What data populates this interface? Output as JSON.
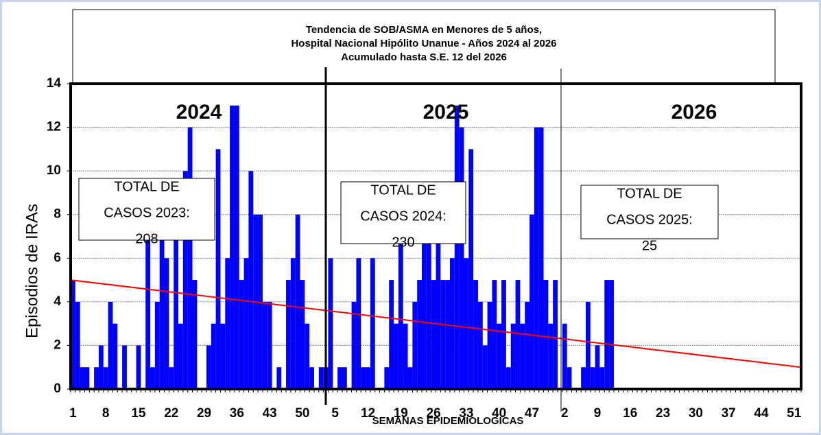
{
  "chart_data": {
    "type": "bar",
    "title_lines": [
      "Tendencia  de SOB/ASMA en Menores de 5 años,",
      "Hospital Nacional Hipólito Unanue - Años 2024 al 2026",
      "Acumulado hasta S.E. 12 del 2026"
    ],
    "x_label": "SEMANAS EPIDEMIOLOGICAS",
    "y_label": "Episodios de IRAs",
    "year_labels": [
      "2024",
      "2025",
      "2026"
    ],
    "annotations": [
      [
        "TOTAL DE",
        "CASOS 2023:",
        "208"
      ],
      [
        "TOTAL DE",
        "CASOS 2024:",
        "230"
      ],
      [
        "TOTAL DE",
        "CASOS 2025:",
        "25"
      ]
    ],
    "color": "#0000ff",
    "categories": [
      "1",
      null,
      null,
      null,
      null,
      null,
      null,
      "8",
      null,
      null,
      null,
      null,
      null,
      null,
      "15",
      null,
      null,
      null,
      null,
      null,
      null,
      "22",
      null,
      null,
      null,
      null,
      null,
      null,
      "29",
      null,
      null,
      null,
      null,
      null,
      null,
      "36",
      null,
      null,
      null,
      null,
      null,
      null,
      "43",
      null,
      null,
      null,
      null,
      null,
      null,
      "50",
      null,
      null,
      null,
      null,
      null,
      null,
      "5",
      null,
      null,
      null,
      null,
      null,
      null,
      "12",
      null,
      null,
      null,
      null,
      null,
      null,
      "19",
      null,
      null,
      null,
      null,
      null,
      null,
      "26",
      null,
      null,
      null,
      null,
      null,
      null,
      "33",
      null,
      null,
      null,
      null,
      null,
      null,
      "40",
      null,
      null,
      null,
      null,
      null,
      null,
      "47",
      null,
      null,
      null,
      null,
      null,
      null,
      "2",
      null,
      null,
      null,
      null,
      null,
      null,
      "9",
      null,
      null,
      null,
      null,
      null,
      null,
      "16",
      null,
      null,
      null,
      null,
      null,
      null,
      "23",
      null,
      null,
      null,
      null,
      null,
      null,
      "30",
      null,
      null,
      null,
      null,
      null,
      null,
      "37",
      null,
      null,
      null,
      null,
      null,
      null,
      "44",
      null,
      null,
      null,
      null,
      null,
      null,
      "51",
      null
    ],
    "values": [
      5,
      4,
      1,
      1,
      0,
      1,
      2,
      1,
      4,
      3,
      0,
      2,
      0,
      0,
      2,
      0,
      7,
      1,
      4,
      7,
      6,
      1,
      7,
      3,
      10,
      12,
      5,
      0,
      0,
      2,
      3,
      11,
      3,
      6,
      13,
      13,
      5,
      6,
      10,
      8,
      8,
      4,
      4,
      0,
      1,
      0,
      5,
      6,
      8,
      5,
      3,
      1,
      0,
      1,
      1,
      6,
      0,
      1,
      1,
      0,
      4,
      6,
      1,
      1,
      6,
      0,
      0,
      1,
      5,
      3,
      7,
      3,
      1,
      4,
      5,
      7,
      8,
      5,
      9,
      5,
      5,
      6,
      13,
      12,
      6,
      11,
      5,
      4,
      2,
      4,
      5,
      3,
      5,
      1,
      3,
      5,
      3,
      4,
      8,
      12,
      12,
      5,
      3,
      5,
      0,
      3,
      1,
      0,
      0,
      1,
      4,
      1,
      2,
      1,
      5,
      5,
      null,
      null,
      null,
      null,
      null,
      null,
      null,
      null,
      null,
      null,
      null,
      null,
      null,
      null,
      null,
      null,
      null,
      null,
      null,
      null,
      null,
      null,
      null,
      null,
      null,
      null,
      null,
      null,
      null,
      null,
      null,
      null,
      null,
      null,
      null,
      null,
      null,
      null,
      null,
      null
    ],
    "trend": {
      "color": "#ff0000",
      "values": [
        5,
        1
      ]
    },
    "ylim": [
      0,
      14
    ],
    "yticks": [
      0,
      2,
      4,
      6,
      8,
      10,
      12,
      14
    ],
    "grid": true
  }
}
